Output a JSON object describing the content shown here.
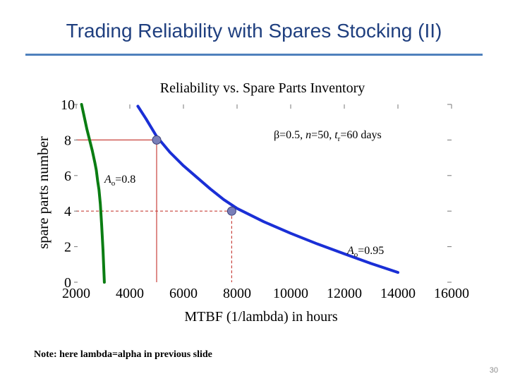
{
  "slide": {
    "title": "Trading Reliability with Spares Stocking (II)",
    "note": "Note: here lambda=alpha in previous slide",
    "page_number": "30",
    "accent_color": "#4f81bd"
  },
  "chart_data": {
    "type": "line",
    "title": "Reliability vs. Spare Parts Inventory",
    "xlabel": "MTBF (1/lambda) in hours",
    "ylabel": "spare parts number",
    "xlim": [
      2000,
      16000
    ],
    "ylim": [
      0,
      10
    ],
    "xticks": [
      "2000",
      "4000",
      "6000",
      "8000",
      "10000",
      "12000",
      "14000",
      "16000"
    ],
    "yticks": [
      "0",
      "2",
      "4",
      "6",
      "8",
      "10"
    ],
    "grid": false,
    "series": [
      {
        "color": "#0a7d12",
        "x": [
          2200,
          2300,
          2400,
          2500,
          2600,
          2700,
          2750,
          2800,
          2850,
          2900,
          2950,
          3000,
          3050
        ],
        "y": [
          10,
          9.3,
          8.6,
          8.0,
          7.4,
          6.7,
          6.3,
          5.7,
          5.2,
          4.4,
          3.2,
          1.8,
          0
        ]
      },
      {
        "color": "#1a2fd6",
        "x": [
          4300,
          4600,
          5000,
          5500,
          6000,
          6500,
          7000,
          7500,
          8000,
          9000,
          10000,
          11000,
          12000,
          13000,
          14000
        ],
        "y": [
          9.9,
          9.2,
          8.2,
          7.3,
          6.55,
          5.9,
          5.25,
          4.65,
          4.15,
          3.4,
          2.75,
          2.15,
          1.6,
          1.05,
          0.55
        ]
      }
    ],
    "markers": [
      {
        "x": 5000,
        "y": 8.0,
        "color": "#7a7fb8"
      },
      {
        "x": 7800,
        "y": 4.0,
        "color": "#7a7fb8"
      }
    ],
    "reference_lines": [
      {
        "x": 5000,
        "y": 8.0,
        "color": "#c8423c"
      },
      {
        "x": 7800,
        "y": 4.0,
        "color": "#c8423c"
      }
    ],
    "annotations": {
      "params": {
        "beta": "β=0.5, ",
        "n_sym": "n",
        "n_eq": "=50, ",
        "t_sym": "t",
        "t_sub": "r",
        "t_eq": "=60 days"
      },
      "a08": {
        "sym": "A",
        "sub": "o",
        "val": "=0.8"
      },
      "a095": {
        "sym": "A",
        "sub": "o",
        "val": "=0.95"
      }
    }
  }
}
